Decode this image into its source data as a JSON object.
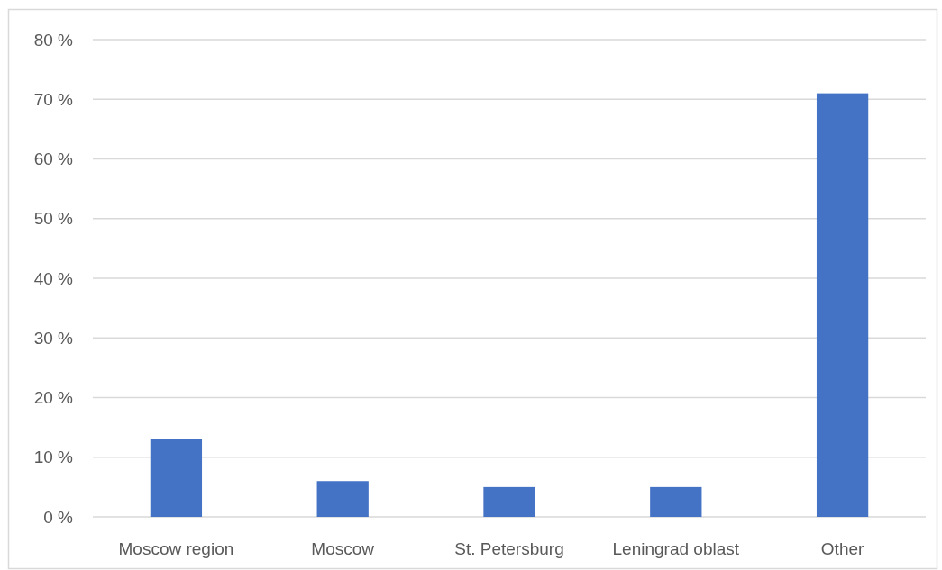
{
  "chart_data": {
    "type": "bar",
    "categories": [
      "Moscow region",
      "Moscow",
      "St. Petersburg",
      "Leningrad oblast",
      "Other"
    ],
    "values": [
      13,
      6,
      5,
      5,
      71
    ],
    "color": "#4472c4",
    "ylim": [
      0,
      80
    ],
    "yticks": [
      {
        "value": 0,
        "label": "0 %"
      },
      {
        "value": 10,
        "label": "10 %"
      },
      {
        "value": 20,
        "label": "20 %"
      },
      {
        "value": 30,
        "label": "30 %"
      },
      {
        "value": 40,
        "label": "40 %"
      },
      {
        "value": 50,
        "label": "50 %"
      },
      {
        "value": 60,
        "label": "60 %"
      },
      {
        "value": 70,
        "label": "70 %"
      },
      {
        "value": 80,
        "label": "80 %"
      }
    ],
    "grid": "y"
  }
}
